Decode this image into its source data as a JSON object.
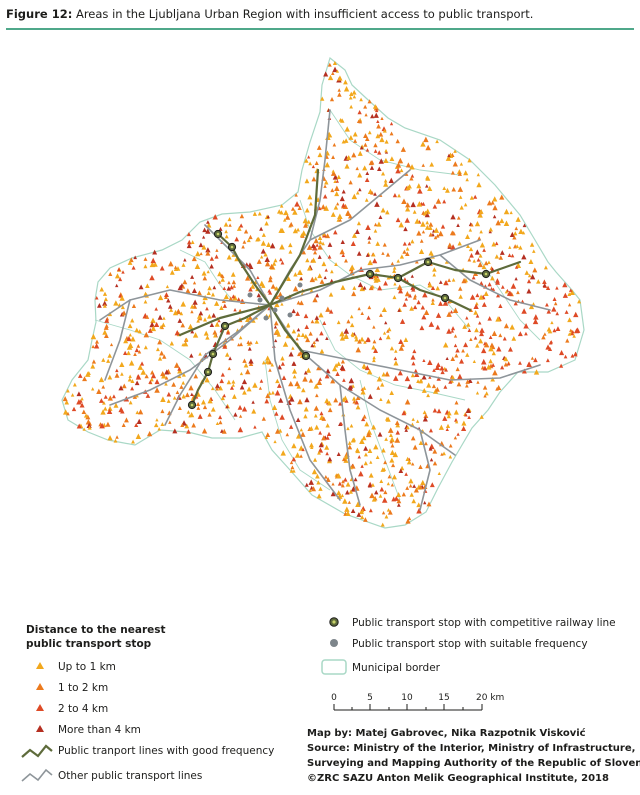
{
  "figure": {
    "label": "Figure 12:",
    "title": "Areas in the Ljubljana Urban Region with insufficient access to public transport."
  },
  "colors": {
    "accent_rule": "#4fa88a",
    "region_fill": "#ffffff",
    "municipal_border": "#a9d8c6",
    "up_to_1km": "#f2a81c",
    "km_1_2": "#ec7a1d",
    "km_2_4": "#de4a26",
    "more_than_4km": "#b52f21",
    "good_frequency_line": "#5e6b3b",
    "other_line": "#8e959a"
  },
  "legend_left": {
    "title_line1": "Distance to the nearest",
    "title_line2": "public transport stop",
    "classes": [
      {
        "label": "Up to 1 km",
        "color_key": "up_to_1km"
      },
      {
        "label": "1 to 2 km",
        "color_key": "km_1_2"
      },
      {
        "label": "2 to 4 km",
        "color_key": "km_2_4"
      },
      {
        "label": "More than 4 km",
        "color_key": "more_than_4km"
      }
    ],
    "line_good": "Public tranport lines with good frequency",
    "line_other": "Other public transport lines"
  },
  "legend_right": {
    "stop_rail": "Public transport stop with competitive railway line",
    "stop_suitable": "Public transport stop with suitable frequency",
    "border": "Municipal border"
  },
  "scale_bar": {
    "ticks": [
      "0",
      "5",
      "10",
      "15",
      "20 km"
    ]
  },
  "credits": {
    "line1": "Map by: Matej Gabrovec, Nika Razpotnik Visković",
    "line2": "Source: Ministry of the Interior, Ministry of Infrastructure,",
    "line3": "Surveying and Mapping Authority of the Republic of Slovenia",
    "line4": "©ZRC SAZU Anton Melik Geographical Institute, 2018"
  }
}
